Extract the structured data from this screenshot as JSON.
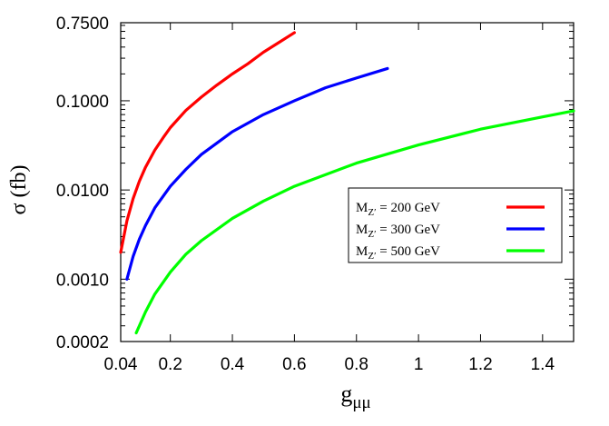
{
  "chart_data": {
    "type": "line",
    "title": "",
    "xlabel": "g",
    "xlabel_subscript": "μμ",
    "ylabel": "σ (fb)",
    "xlim": [
      0.04,
      1.5
    ],
    "ylim": [
      0.0002,
      0.75
    ],
    "yscale": "log",
    "grid": false,
    "legend_position": "center-right",
    "x_ticks": [
      0.04,
      0.2,
      0.4,
      0.6,
      0.8,
      1.0,
      1.2,
      1.4
    ],
    "x_tick_labels": [
      "0.04",
      "0.2",
      "0.4",
      "0.6",
      "0.8",
      "1",
      "1.2",
      "1.4"
    ],
    "y_ticks": [
      0.0002,
      0.001,
      0.01,
      0.1,
      0.75
    ],
    "y_tick_labels": [
      "0.0002",
      "0.0010",
      "0.0100",
      "0.1000",
      "0.7500"
    ],
    "series": [
      {
        "name": "M",
        "name_subscript": "Z′",
        "name_suffix": " = 200 GeV",
        "color": "#ff0000",
        "x": [
          0.04,
          0.06,
          0.08,
          0.1,
          0.12,
          0.15,
          0.18,
          0.2,
          0.25,
          0.3,
          0.35,
          0.4,
          0.45,
          0.5,
          0.55,
          0.6
        ],
        "y": [
          0.002,
          0.0045,
          0.008,
          0.0125,
          0.018,
          0.028,
          0.04,
          0.05,
          0.078,
          0.11,
          0.15,
          0.2,
          0.26,
          0.35,
          0.45,
          0.58
        ]
      },
      {
        "name": "M",
        "name_subscript": "Z′",
        "name_suffix": " = 300 GeV",
        "color": "#0000ff",
        "x": [
          0.06,
          0.08,
          0.1,
          0.12,
          0.15,
          0.2,
          0.25,
          0.3,
          0.4,
          0.5,
          0.6,
          0.7,
          0.8,
          0.9
        ],
        "y": [
          0.001,
          0.0018,
          0.0028,
          0.004,
          0.0063,
          0.011,
          0.017,
          0.025,
          0.045,
          0.07,
          0.1,
          0.14,
          0.18,
          0.23
        ]
      },
      {
        "name": "M",
        "name_subscript": "Z′",
        "name_suffix": " = 500 GeV",
        "color": "#00ff00",
        "x": [
          0.09,
          0.1,
          0.12,
          0.15,
          0.2,
          0.25,
          0.3,
          0.4,
          0.5,
          0.6,
          0.8,
          1.0,
          1.2,
          1.4,
          1.5
        ],
        "y": [
          0.00025,
          0.0003,
          0.00043,
          0.00068,
          0.0012,
          0.0019,
          0.0027,
          0.0048,
          0.0075,
          0.011,
          0.02,
          0.032,
          0.048,
          0.066,
          0.077
        ]
      }
    ]
  }
}
